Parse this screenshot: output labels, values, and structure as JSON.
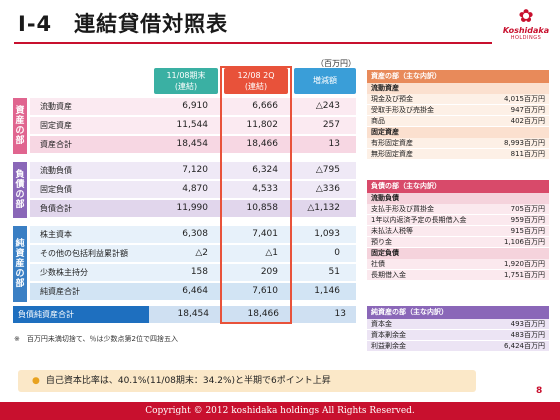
{
  "title": "Ⅰ-4　連結貸借対照表",
  "logo": {
    "brand": "Koshidaka",
    "holdings": "HOLDINGS"
  },
  "unit": "（百万円）",
  "headers": {
    "col_a": "11/08期末\n(連結)",
    "col_b": "12/08 2Q\n(連結)",
    "col_c": "増減額"
  },
  "sections": {
    "assets": "資産の部",
    "liabilities": "負債の部",
    "net_assets": "純資産の部"
  },
  "rows": [
    {
      "label": "流動資産",
      "a": "6,910",
      "b": "6,666",
      "c": "△243"
    },
    {
      "label": "固定資産",
      "a": "11,544",
      "b": "11,802",
      "c": "257"
    },
    {
      "label": "資産合計",
      "a": "18,454",
      "b": "18,466",
      "c": "13"
    },
    {
      "label": "流動負債",
      "a": "7,120",
      "b": "6,324",
      "c": "△795"
    },
    {
      "label": "固定負債",
      "a": "4,870",
      "b": "4,533",
      "c": "△336"
    },
    {
      "label": "負債合計",
      "a": "11,990",
      "b": "10,858",
      "c": "△1,132"
    },
    {
      "label": "株主資本",
      "a": "6,308",
      "b": "7,401",
      "c": "1,093"
    },
    {
      "label": "その他の包括利益累計額",
      "a": "△2",
      "b": "△1",
      "c": "0"
    },
    {
      "label": "少数株主持分",
      "a": "158",
      "b": "209",
      "c": "51"
    },
    {
      "label": "純資産合計",
      "a": "6,464",
      "b": "7,610",
      "c": "1,146"
    }
  ],
  "total": {
    "label": "負債純資産合計",
    "a": "18,454",
    "b": "18,466",
    "c": "13"
  },
  "note": "※　百万円未満切捨て、％は少数点第2位で四捨五入",
  "panels": {
    "assets": {
      "title": "資産の部（主な内訳）",
      "groups": [
        {
          "sub": "流動資産",
          "items": [
            {
              "n": "現金及び預金",
              "a": "4,015百万円"
            },
            {
              "n": "受取手形及び売掛金",
              "a": "947百万円"
            },
            {
              "n": "商品",
              "a": "402百万円"
            }
          ]
        },
        {
          "sub": "固定資産",
          "items": [
            {
              "n": "有形固定資産",
              "a": "8,993百万円"
            },
            {
              "n": "無形固定資産",
              "a": "811百万円"
            }
          ]
        }
      ]
    },
    "liabilities": {
      "title": "負債の部（主な内訳）",
      "groups": [
        {
          "sub": "流動負債",
          "items": [
            {
              "n": "支払手形及び買掛金",
              "a": "705百万円"
            },
            {
              "n": "1年以内返済予定の長期借入金",
              "a": "959百万円"
            },
            {
              "n": "未払法人税等",
              "a": "915百万円"
            },
            {
              "n": "預り金",
              "a": "1,106百万円"
            }
          ]
        },
        {
          "sub": "固定負債",
          "items": [
            {
              "n": "社債",
              "a": "1,920百万円"
            },
            {
              "n": "長期借入金",
              "a": "1,751百万円"
            }
          ]
        }
      ]
    },
    "net_assets": {
      "title": "純資産の部（主な内訳）",
      "groups": [
        {
          "sub": "",
          "items": [
            {
              "n": "資本金",
              "a": "493百万円"
            },
            {
              "n": "資本剰余金",
              "a": "483百万円"
            },
            {
              "n": "利益剰余金",
              "a": "6,424百万円"
            }
          ]
        }
      ]
    }
  },
  "banner": "自己資本比率は、40.1%(11/08期末：34.2%)と半期で6ポイント上昇",
  "footer": "Copyright © 2012 koshidaka holdings All Rights Reserved.",
  "page_number": "8",
  "colors": {
    "accent": "#c8102e",
    "teal": "#3ab0a3",
    "orange": "#e8523a",
    "blue": "#3a9ed8",
    "asset_pink": "#e0658f",
    "liab_purple": "#8a67b8",
    "net_blue": "#1e6fbf"
  }
}
